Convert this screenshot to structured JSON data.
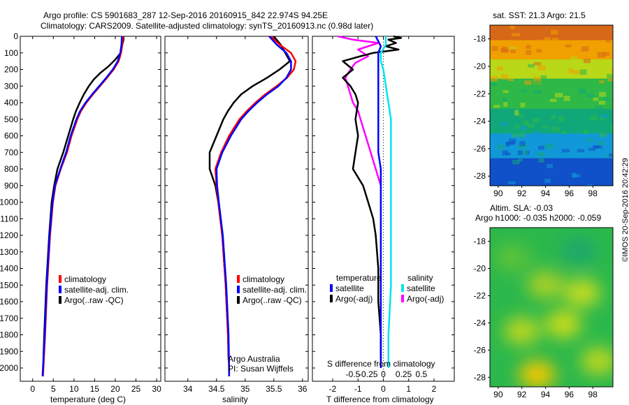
{
  "header": {
    "line1": "Argo profile: CS 5901683_287 12-Sep-2016 20160915_842 22.974S 94.25E",
    "line2": "Climatology: CARS2009. Satellite-adjusted climatology: synTS_20160913.nc (0.98d later)"
  },
  "credit": "©IMOS 20-Sep-2016 20:42:29",
  "institution": {
    "line1": "Argo Australia",
    "line2": "PI: Susan Wijffels"
  },
  "colors": {
    "climatology": "#ff0000",
    "satellite": "#0000ff",
    "argo": "#000000",
    "sal_sat": "#00e5ee",
    "sal_argo": "#ff00ff"
  },
  "chart_data": [
    {
      "type": "line",
      "id": "temperature",
      "xlabel": "temperature (deg C)",
      "ylabel": "",
      "xlim": [
        -3,
        31
      ],
      "ylim": [
        2080,
        0
      ],
      "xticks": [
        0,
        5,
        10,
        15,
        20,
        25,
        30
      ],
      "yticks": [
        0,
        100,
        200,
        300,
        400,
        500,
        600,
        700,
        800,
        900,
        1000,
        1100,
        1200,
        1300,
        1400,
        1500,
        1600,
        1700,
        1800,
        1900,
        2000
      ],
      "legend": [
        "climatology",
        "satellite-adj. clim.",
        "Argo(..raw -QC)"
      ],
      "series": [
        {
          "name": "climatology",
          "color": "#ff0000",
          "depth": [
            0,
            50,
            100,
            150,
            200,
            250,
            300,
            350,
            400,
            450,
            500,
            600,
            700,
            800,
            900,
            1000,
            1200,
            1500,
            1800,
            2000,
            2050
          ],
          "values": [
            21.9,
            21.7,
            21.4,
            20.8,
            19.6,
            18.0,
            16.3,
            14.6,
            13.0,
            11.7,
            10.8,
            9.4,
            8.3,
            6.8,
            5.5,
            4.9,
            4.2,
            3.5,
            3.0,
            2.6,
            2.5
          ]
        },
        {
          "name": "satellite-adj. clim.",
          "color": "#0000ff",
          "depth": [
            0,
            50,
            100,
            150,
            200,
            250,
            300,
            350,
            400,
            450,
            500,
            600,
            700,
            800,
            900,
            1000,
            1200,
            1500,
            1800,
            2000,
            2050
          ],
          "values": [
            21.6,
            21.5,
            21.2,
            20.6,
            19.4,
            17.8,
            16.1,
            14.4,
            12.8,
            11.5,
            10.6,
            9.2,
            8.1,
            6.7,
            5.4,
            4.8,
            4.1,
            3.4,
            2.9,
            2.5,
            2.4
          ]
        },
        {
          "name": "Argo(..raw -QC)",
          "color": "#000000",
          "depth": [
            0,
            20,
            60,
            100,
            140,
            180,
            220,
            260,
            300,
            350,
            400,
            450,
            500,
            600,
            700,
            800,
            900,
            1000,
            1200,
            1500,
            1800,
            1950
          ],
          "values": [
            22.0,
            22.0,
            21.6,
            21.3,
            20.0,
            18.4,
            16.4,
            14.8,
            13.6,
            12.4,
            11.4,
            10.5,
            9.8,
            8.6,
            7.4,
            6.0,
            5.2,
            4.6,
            4.0,
            3.3,
            2.8,
            2.6
          ]
        }
      ]
    },
    {
      "type": "line",
      "id": "salinity",
      "xlabel": "salinity",
      "xlim": [
        33.6,
        36.1
      ],
      "ylim": [
        2080,
        0
      ],
      "xticks": [
        34,
        34.5,
        35,
        35.5,
        36
      ],
      "legend": [
        "climatology",
        "satellite-adj. clim.",
        "Argo(..raw -QC)"
      ],
      "series": [
        {
          "name": "climatology",
          "color": "#ff0000",
          "depth": [
            0,
            50,
            100,
            150,
            200,
            250,
            300,
            350,
            400,
            450,
            500,
            600,
            700,
            800,
            900,
            1000,
            1200,
            1500,
            1800,
            2000,
            2050
          ],
          "values": [
            35.45,
            35.6,
            35.8,
            35.88,
            35.85,
            35.73,
            35.55,
            35.35,
            35.18,
            35.03,
            34.9,
            34.72,
            34.58,
            34.48,
            34.5,
            34.53,
            34.6,
            34.66,
            34.7,
            34.72,
            34.72
          ]
        },
        {
          "name": "satellite-adj. clim.",
          "color": "#0000ff",
          "depth": [
            0,
            50,
            100,
            150,
            200,
            250,
            300,
            350,
            400,
            450,
            500,
            600,
            700,
            800,
            900,
            1000,
            1200,
            1500,
            1800,
            2000,
            2050
          ],
          "values": [
            35.42,
            35.55,
            35.72,
            35.8,
            35.8,
            35.72,
            35.58,
            35.38,
            35.21,
            35.06,
            34.93,
            34.75,
            34.6,
            34.5,
            34.51,
            34.54,
            34.61,
            34.67,
            34.71,
            34.72,
            34.72
          ]
        },
        {
          "name": "Argo(..raw -QC)",
          "color": "#000000",
          "depth": [
            0,
            50,
            100,
            150,
            200,
            250,
            300,
            350,
            400,
            450,
            500,
            600,
            700,
            800,
            900,
            1000,
            1200,
            1500,
            1800,
            1950
          ],
          "values": [
            35.5,
            35.62,
            35.7,
            35.78,
            35.6,
            35.38,
            35.13,
            34.93,
            34.8,
            34.7,
            34.62,
            34.5,
            34.38,
            34.38,
            34.48,
            34.53,
            34.6,
            34.66,
            34.7,
            34.71
          ]
        }
      ]
    },
    {
      "type": "line",
      "id": "difference",
      "xlabel": "T difference from climatology",
      "xlabel_top": "S difference from climatology",
      "xlim": [
        -2.8,
        2.8
      ],
      "ylim": [
        2080,
        0
      ],
      "xticks_T": [
        -2,
        -1,
        0,
        1,
        2
      ],
      "xticks_S": [
        "-0.5",
        "-0.25",
        "0",
        "0.25",
        "0.5"
      ],
      "legend_titles": [
        "temperature",
        "salinity"
      ],
      "legend": [
        "satellite",
        "Argo(-adj)",
        "satellite",
        "Argo(-adj)"
      ],
      "series": [
        {
          "name": "satellite",
          "group": "temperature",
          "color": "#0000ff",
          "depth": [
            0,
            30,
            60,
            100,
            150,
            200,
            300,
            400,
            500,
            600,
            700,
            800,
            900,
            1000,
            1200,
            1500,
            1800,
            2000
          ],
          "values": [
            -0.3,
            -0.2,
            -0.1,
            -0.2,
            -0.2,
            -0.2,
            -0.2,
            -0.2,
            -0.2,
            -0.2,
            -0.2,
            -0.1,
            -0.1,
            -0.1,
            -0.1,
            -0.1,
            -0.1,
            -0.1
          ]
        },
        {
          "name": "Argo(-adj)",
          "group": "temperature",
          "color": "#000000",
          "depth": [
            0,
            10,
            20,
            40,
            60,
            80,
            100,
            120,
            150,
            200,
            250,
            300,
            350,
            400,
            500,
            600,
            700,
            800,
            900,
            1000,
            1100,
            1200,
            1400,
            1600,
            1800,
            1950
          ],
          "values": [
            0.4,
            0.7,
            0.2,
            0.5,
            0.1,
            0.6,
            -0.4,
            -0.9,
            -1.6,
            -1.2,
            -1.6,
            -1.3,
            -1.1,
            -1.0,
            -1.1,
            -1.0,
            -1.1,
            -1.2,
            -0.8,
            -0.6,
            -0.4,
            -0.3,
            -0.2,
            -0.2,
            -0.1,
            -0.1
          ]
        },
        {
          "name": "satellite",
          "group": "salinity",
          "color": "#00e5ee",
          "depth": [
            0,
            50,
            100,
            150,
            200,
            300,
            400,
            500,
            600,
            700,
            800,
            900,
            1000,
            1200,
            1500,
            1800,
            2000
          ],
          "values": [
            0.1,
            0.1,
            -0.1,
            -0.1,
            0.0,
            0.1,
            0.2,
            0.3,
            0.3,
            0.3,
            0.3,
            0.3,
            0.3,
            0.3,
            0.3,
            0.2,
            0.2
          ]
        },
        {
          "name": "Argo(-adj)",
          "group": "salinity",
          "color": "#ff00ff",
          "depth": [
            0,
            20,
            40,
            80,
            120,
            160,
            200,
            250,
            300,
            350,
            400,
            450,
            500,
            600,
            700,
            800,
            900
          ],
          "values": [
            -1.8,
            -1.2,
            -0.2,
            -1.0,
            -0.6,
            -1.1,
            -1.3,
            -1.5,
            -1.4,
            -1.3,
            -1.2,
            -1.0,
            -0.9,
            -0.7,
            -0.5,
            -0.3,
            -0.1
          ]
        }
      ]
    },
    {
      "type": "heatmap",
      "id": "sst",
      "title": "sat. SST: 21.3 Argo: 21.5",
      "xlim": [
        89.3,
        99.7
      ],
      "ylim": [
        -28.7,
        -17.0
      ],
      "xticks": [
        90,
        92,
        94,
        96,
        98
      ],
      "yticks": [
        -18,
        -20,
        -22,
        -24,
        -26,
        -28
      ],
      "marker": {
        "lon": 94.25,
        "lat": -22.974
      },
      "bands": [
        {
          "lat": -17.0,
          "color": "#d76818"
        },
        {
          "lat": -18.4,
          "color": "#f0a000"
        },
        {
          "lat": -19.8,
          "color": "#b8d818"
        },
        {
          "lat": -21.2,
          "color": "#2db848"
        },
        {
          "lat": -23.4,
          "color": "#10a878"
        },
        {
          "lat": -25.2,
          "color": "#1098d8"
        },
        {
          "lat": -27.0,
          "color": "#1050c8"
        }
      ]
    },
    {
      "type": "heatmap",
      "id": "sla",
      "title": "Altim. SLA: -0.03",
      "subtitle": "Argo h1000: -0.035 h2000: -0.059",
      "xlim": [
        89.3,
        99.7
      ],
      "ylim": [
        -28.7,
        -17.0
      ],
      "xticks": [
        90,
        92,
        94,
        96,
        98
      ],
      "yticks": [
        -18,
        -20,
        -22,
        -24,
        -26,
        -28
      ],
      "marker": {
        "lon": 94.25,
        "lat": -22.974
      },
      "base_color": "#2cb84c",
      "blobs": [
        {
          "lon": 93.3,
          "lat": -27.8,
          "color": "#f2c800"
        },
        {
          "lon": 92.0,
          "lat": -24.6,
          "color": "#b8d620"
        },
        {
          "lon": 95.5,
          "lat": -24.1,
          "color": "#c8dc1c"
        },
        {
          "lon": 98.5,
          "lat": -26.8,
          "color": "#b8d620"
        },
        {
          "lon": 97.1,
          "lat": -21.8,
          "color": "#c4dc20"
        },
        {
          "lon": 94.0,
          "lat": -21.2,
          "color": "#a8d028"
        },
        {
          "lon": 96.8,
          "lat": -18.7,
          "color": "#1ea86c"
        },
        {
          "lon": 91.2,
          "lat": -19.2,
          "color": "#5cc238"
        }
      ]
    }
  ]
}
